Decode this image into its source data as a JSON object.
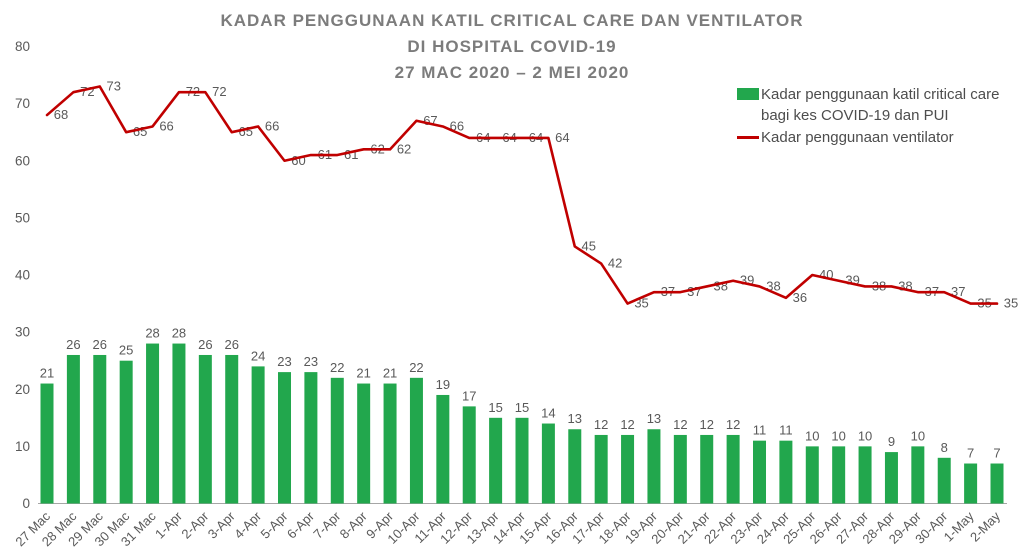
{
  "title": {
    "line1": "KADAR PENGGUNAAN KATIL CRITICAL CARE DAN VENTILATOR",
    "line2": "DI HOSPITAL COVID-19",
    "line3": "27 MAC 2020 – 2 MEI 2020"
  },
  "legend": {
    "critical_care": "Kadar penggunaan katil critical care bagi kes COVID-19 dan PUI",
    "ventilator": "Kadar penggunaan ventilator"
  },
  "colors": {
    "bar_green": "#22a74d",
    "line_red": "#c00000",
    "label_gray": "#595959",
    "title_gray": "#7c7c7c",
    "axis_gray": "#a6a6a6"
  },
  "chart_data": {
    "type": "bar",
    "combo": "bar+line",
    "categories": [
      "27 Mac",
      "28 Mac",
      "29 Mac",
      "30 Mac",
      "31 Mac",
      "1-Apr",
      "2-Apr",
      "3-Apr",
      "4-Apr",
      "5-Apr",
      "6-Apr",
      "7-Apr",
      "8-Apr",
      "9-Apr",
      "10-Apr",
      "11-Apr",
      "12-Apr",
      "13-Apr",
      "14-Apr",
      "15-Apr",
      "16-Apr",
      "17-Apr",
      "18-Apr",
      "19-Apr",
      "20-Apr",
      "21-Apr",
      "22-Apr",
      "23-Apr",
      "24-Apr",
      "25-Apr",
      "26-Apr",
      "27-Apr",
      "28-Apr",
      "29-Apr",
      "30-Apr",
      "1-May",
      "2-May"
    ],
    "series": [
      {
        "name": "Kadar penggunaan katil critical care bagi kes COVID-19 dan PUI",
        "type": "bar",
        "color": "#22a74d",
        "values": [
          21,
          26,
          26,
          25,
          28,
          28,
          26,
          26,
          24,
          23,
          23,
          22,
          21,
          21,
          22,
          19,
          17,
          15,
          15,
          14,
          13,
          12,
          12,
          13,
          12,
          12,
          12,
          11,
          11,
          10,
          10,
          10,
          9,
          10,
          8,
          7,
          7
        ]
      },
      {
        "name": "Kadar penggunaan ventilator",
        "type": "line",
        "color": "#c00000",
        "values": [
          68,
          72,
          73,
          65,
          66,
          72,
          72,
          65,
          66,
          60,
          61,
          61,
          62,
          62,
          67,
          66,
          64,
          64,
          64,
          64,
          45,
          42,
          35,
          37,
          37,
          38,
          39,
          38,
          36,
          40,
          39,
          38,
          38,
          37,
          37,
          35,
          35
        ]
      }
    ],
    "title": "KADAR PENGGUNAAN KATIL CRITICAL CARE DAN VENTILATOR DI HOSPITAL COVID-19 27 MAC 2020 – 2 MEI 2020",
    "xlabel": "",
    "ylabel": "",
    "y_axis": {
      "min": 0,
      "max": 80,
      "ticks": [
        80,
        70,
        60,
        50,
        40,
        30,
        20,
        10,
        0
      ]
    },
    "grid": false,
    "data_labels": true,
    "legend_position": "top-right"
  }
}
